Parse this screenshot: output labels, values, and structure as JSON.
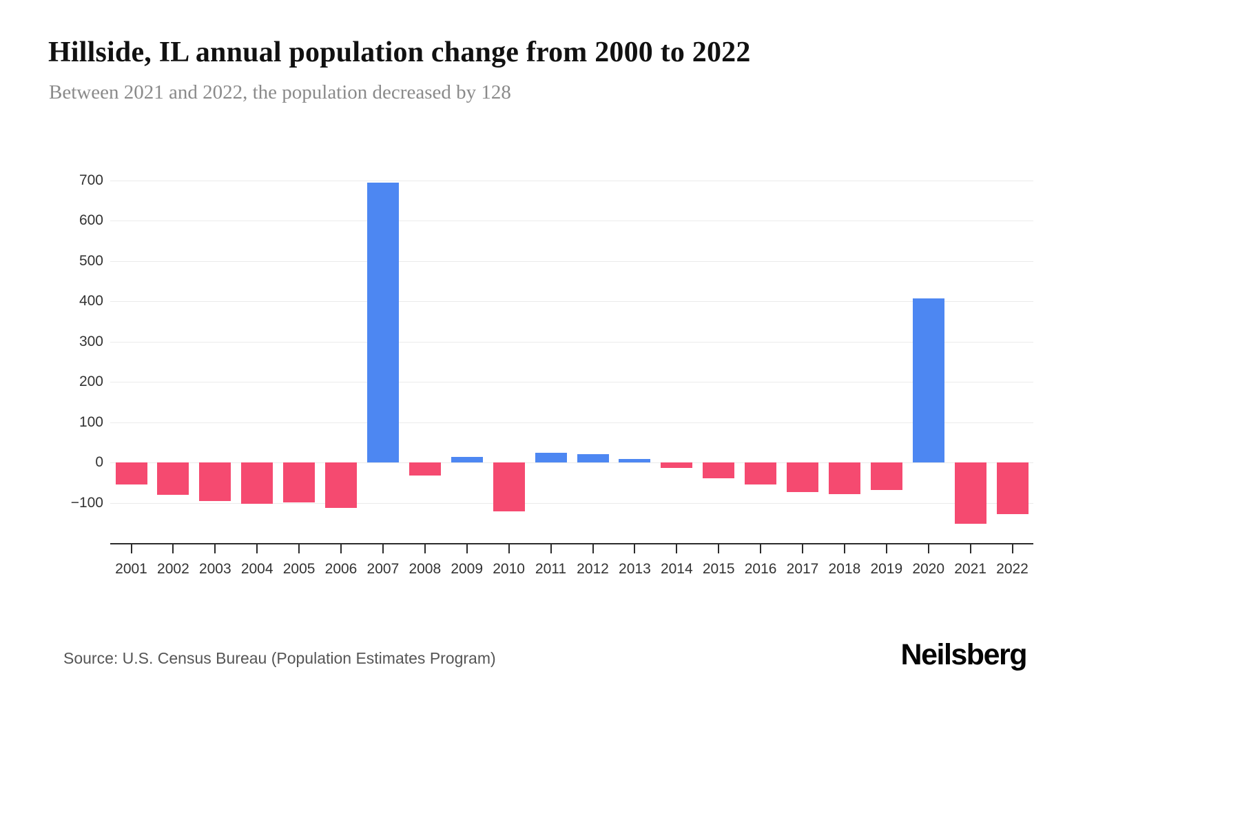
{
  "header": {
    "title": "Hillside, IL annual population change from 2000 to 2022",
    "subtitle": "Between 2021 and 2022, the population decreased by 128"
  },
  "footer": {
    "source": "Source: U.S. Census Bureau (Population Estimates Program)",
    "brand": "Neilsberg"
  },
  "chart_data": {
    "type": "bar",
    "title": "Hillside, IL annual population change from 2000 to 2022",
    "subtitle": "Between 2021 and 2022, the population decreased by 128",
    "categories": [
      "2001",
      "2002",
      "2003",
      "2004",
      "2005",
      "2006",
      "2007",
      "2008",
      "2009",
      "2010",
      "2011",
      "2012",
      "2013",
      "2014",
      "2015",
      "2016",
      "2017",
      "2018",
      "2019",
      "2020",
      "2021",
      "2022"
    ],
    "values": [
      -55,
      -80,
      -95,
      -103,
      -99,
      -112,
      695,
      -33,
      14,
      -121,
      24,
      21,
      8,
      -14,
      -40,
      -55,
      -74,
      -79,
      -68,
      408,
      -152,
      -128
    ],
    "xlabel": "",
    "ylabel": "",
    "ylim": [
      -200,
      700
    ],
    "yticks": [
      700,
      600,
      500,
      400,
      300,
      200,
      100,
      0,
      -100
    ],
    "grid": true,
    "legend": false,
    "colors": {
      "positive": "#4d87f2",
      "negative": "#f54a70"
    }
  }
}
